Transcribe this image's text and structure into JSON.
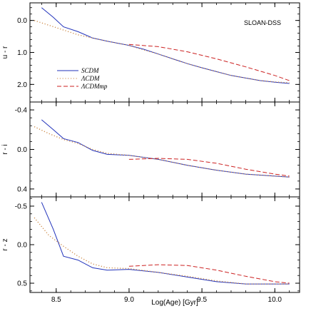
{
  "chart_data": {
    "type": "line",
    "xlabel": "Log(Age) [Gyr]",
    "xlim": [
      8.32,
      10.17
    ],
    "xticks": [
      8.5,
      9.0,
      9.5,
      10.0
    ],
    "xtick_labels": [
      "8.5",
      "9.0",
      "9.5",
      "10.0"
    ],
    "annotation": "SLOAN-DSS",
    "legend": {
      "placement": "center-left of top panel",
      "entries": [
        {
          "label": "SCDM",
          "color": "#2233bb",
          "style": "solid"
        },
        {
          "label": "ΛCDM",
          "color": "#cc8844",
          "style": "dotted"
        },
        {
          "label": "ΛCDMmp",
          "color": "#cc2222",
          "style": "dashed"
        }
      ]
    },
    "panels": [
      {
        "ylabel": "u - r",
        "ylim": [
          -0.55,
          2.55
        ],
        "inverted": true,
        "yticks": [
          0.0,
          1.0,
          2.0
        ],
        "ytick_labels": [
          "0.0",
          "1.0",
          "2.0"
        ],
        "series": [
          {
            "label": "SCDM",
            "x": [
              8.4,
              8.48,
              8.55,
              8.65,
              8.75,
              8.85,
              9.0,
              9.1,
              9.2,
              9.3,
              9.4,
              9.5,
              9.6,
              9.7,
              9.8,
              9.9,
              10.0,
              10.1
            ],
            "y": [
              -0.4,
              -0.1,
              0.2,
              0.35,
              0.55,
              0.65,
              0.78,
              0.9,
              1.05,
              1.2,
              1.35,
              1.48,
              1.6,
              1.72,
              1.8,
              1.88,
              1.93,
              1.97
            ]
          },
          {
            "label": "ΛCDM",
            "x": [
              8.35,
              8.45,
              8.55,
              8.65,
              8.75,
              8.85,
              9.0,
              9.1,
              9.2,
              9.3,
              9.4,
              9.5,
              9.6,
              9.7,
              9.8,
              9.9,
              10.0,
              10.1
            ],
            "y": [
              0.0,
              0.15,
              0.3,
              0.45,
              0.55,
              0.65,
              0.78,
              0.92,
              1.05,
              1.2,
              1.35,
              1.48,
              1.6,
              1.72,
              1.8,
              1.88,
              1.92,
              1.95
            ]
          },
          {
            "label": "ΛCDMmp",
            "x": [
              9.0,
              9.2,
              9.4,
              9.6,
              9.8,
              10.0,
              10.1
            ],
            "y": [
              0.75,
              0.82,
              0.98,
              1.2,
              1.45,
              1.72,
              1.88
            ]
          }
        ]
      },
      {
        "ylabel": "r - i",
        "ylim": [
          -0.48,
          0.48
        ],
        "inverted": true,
        "yticks": [
          -0.4,
          0.0,
          0.4
        ],
        "ytick_labels": [
          "-0.4",
          "0.0",
          "0.4"
        ],
        "series": [
          {
            "label": "SCDM",
            "x": [
              8.4,
              8.48,
              8.55,
              8.65,
              8.75,
              8.85,
              9.0,
              9.2,
              9.4,
              9.6,
              9.8,
              10.0,
              10.1
            ],
            "y": [
              -0.3,
              -0.2,
              -0.11,
              -0.07,
              0.01,
              0.05,
              0.06,
              0.1,
              0.16,
              0.21,
              0.25,
              0.27,
              0.28
            ]
          },
          {
            "label": "ΛCDM",
            "x": [
              8.35,
              8.45,
              8.55,
              8.65,
              8.75,
              8.85,
              9.0,
              9.2,
              9.4,
              9.6,
              9.8,
              10.0,
              10.1
            ],
            "y": [
              -0.23,
              -0.16,
              -0.1,
              -0.06,
              0.0,
              0.04,
              0.06,
              0.1,
              0.16,
              0.21,
              0.25,
              0.27,
              0.28
            ]
          },
          {
            "label": "ΛCDMmp",
            "x": [
              9.0,
              9.2,
              9.4,
              9.6,
              9.8,
              10.0,
              10.1
            ],
            "y": [
              0.1,
              0.09,
              0.1,
              0.14,
              0.2,
              0.25,
              0.27
            ]
          }
        ]
      },
      {
        "ylabel": "r - z",
        "ylim": [
          -0.62,
          0.62
        ],
        "inverted": true,
        "yticks": [
          -0.5,
          0.0,
          0.5
        ],
        "ytick_labels": [
          "-0.5",
          "0.0",
          "0.5"
        ],
        "series": [
          {
            "label": "SCDM",
            "x": [
              8.4,
              8.48,
              8.55,
              8.65,
              8.75,
              8.85,
              9.0,
              9.2,
              9.4,
              9.6,
              9.8,
              10.0,
              10.1
            ],
            "y": [
              -0.55,
              -0.2,
              0.15,
              0.2,
              0.3,
              0.33,
              0.32,
              0.36,
              0.42,
              0.48,
              0.51,
              0.51,
              0.51
            ]
          },
          {
            "label": "ΛCDM",
            "x": [
              8.35,
              8.45,
              8.55,
              8.65,
              8.75,
              8.85,
              9.0,
              9.2,
              9.4,
              9.6,
              9.8,
              10.0,
              10.1
            ],
            "y": [
              -0.35,
              -0.12,
              0.02,
              0.15,
              0.25,
              0.3,
              0.31,
              0.36,
              0.41,
              0.47,
              0.51,
              0.51,
              0.51
            ]
          },
          {
            "label": "ΛCDMmp",
            "x": [
              9.0,
              9.2,
              9.4,
              9.6,
              9.8,
              10.0,
              10.1
            ],
            "y": [
              0.28,
              0.26,
              0.27,
              0.33,
              0.41,
              0.48,
              0.5
            ]
          }
        ]
      }
    ]
  }
}
